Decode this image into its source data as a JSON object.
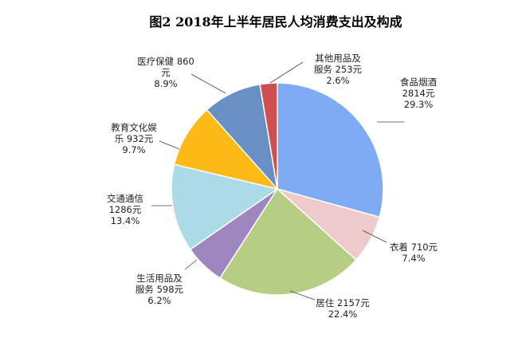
{
  "chart_data": {
    "type": "pie",
    "title": "图2    2018年上半年居民人均消费支出及构成",
    "slices": [
      {
        "name": "食品烟酒",
        "value": 2814,
        "percent": 29.3,
        "value_label": "2814元",
        "percent_label": "29.3%",
        "color": "#7fabf5"
      },
      {
        "name": "衣着",
        "value": 710,
        "percent": 7.4,
        "value_label": "710元",
        "percent_label": "7.4%",
        "color": "#eecacc"
      },
      {
        "name": "居住",
        "value": 2157,
        "percent": 22.4,
        "value_label": "2157元",
        "percent_label": "22.4%",
        "color": "#b6cd84"
      },
      {
        "name": "生活用品及服务",
        "value": 598,
        "percent": 6.2,
        "value_label": "598元",
        "percent_label": "6.2%",
        "color": "#9f86c0"
      },
      {
        "name": "交通通信",
        "value": 1286,
        "percent": 13.4,
        "value_label": "1286元",
        "percent_label": "13.4%",
        "color": "#aadbe6"
      },
      {
        "name": "教育文化娱乐",
        "value": 932,
        "percent": 9.7,
        "value_label": "932元",
        "percent_label": "9.7%",
        "color": "#fdb918"
      },
      {
        "name": "医疗保健",
        "value": 860,
        "percent": 8.9,
        "value_label": "860元",
        "percent_label": "8.9%",
        "color": "#6a8fc4"
      },
      {
        "name": "其他用品及服务",
        "value": 253,
        "percent": 2.6,
        "value_label": "253元",
        "percent_label": "2.6%",
        "color": "#cf4f4f"
      }
    ],
    "labels": [
      {
        "lines": [
          "食品烟酒",
          "2814元",
          "29.3%"
        ]
      },
      {
        "lines": [
          "衣着 710元",
          "7.4%"
        ]
      },
      {
        "lines": [
          "居住 2157元",
          "22.4%"
        ]
      },
      {
        "lines": [
          "生活用品及",
          "服务 598元",
          "6.2%"
        ]
      },
      {
        "lines": [
          "交通通信",
          "1286元",
          "13.4%"
        ]
      },
      {
        "lines": [
          "教育文化娱",
          "乐 932元",
          "9.7%"
        ]
      },
      {
        "lines": [
          "医疗保健 860",
          "元",
          "8.9%"
        ]
      },
      {
        "lines": [
          "其他用品及",
          "服务 253元",
          "2.6%"
        ]
      }
    ]
  }
}
